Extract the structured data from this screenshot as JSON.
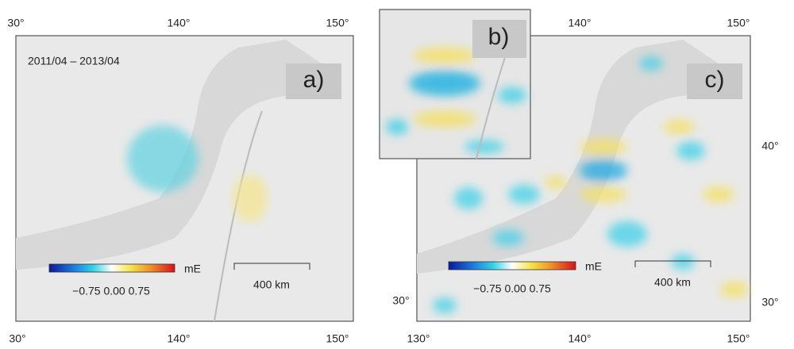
{
  "panel_a": {
    "label": "a)",
    "period": "2011/04 – 2013/04",
    "colorbar": {
      "unit": "mE",
      "ticks": "−0.75 0.00 0.75"
    },
    "scale": "400 km",
    "top_ticks": [
      "30°",
      "140°",
      "150°"
    ],
    "bottom_ticks": [
      "30°",
      "140°",
      "150°"
    ]
  },
  "panel_b": {
    "label": "b)"
  },
  "panel_c": {
    "label": "c)",
    "colorbar": {
      "unit": "mE",
      "ticks": "−0.75 0.00 0.75"
    },
    "scale": "400 km",
    "top_ticks": [
      "140°",
      "150°"
    ],
    "bottom_ticks": [
      "130°",
      "140°",
      "150°"
    ],
    "left_ticks": [
      "30°"
    ],
    "right_ticks": [
      "40°",
      "30°"
    ]
  }
}
